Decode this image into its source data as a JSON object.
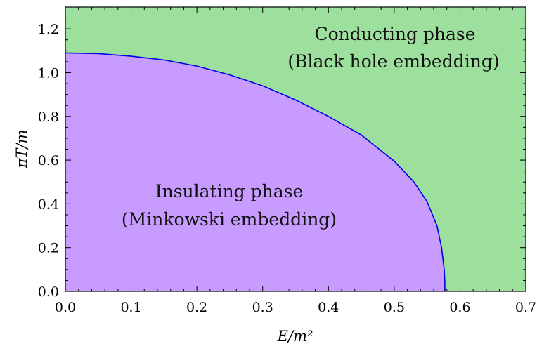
{
  "chart_data": {
    "type": "area",
    "title": "",
    "xlabel": "E/m²",
    "ylabel": "πT/m",
    "xlim": [
      0.0,
      0.7
    ],
    "ylim": [
      0.0,
      1.3
    ],
    "x_ticks": [
      "0.0",
      "0.1",
      "0.2",
      "0.3",
      "0.4",
      "0.5",
      "0.6",
      "0.7"
    ],
    "y_ticks": [
      "0.0",
      "0.2",
      "0.4",
      "0.6",
      "0.8",
      "1.0",
      "1.2"
    ],
    "grid": false,
    "colors": {
      "conducting_fill": "#9ddf9d",
      "insulating_fill": "#c89cff",
      "boundary_line": "#0000e6"
    },
    "series": [
      {
        "x": [
          0.0,
          0.05,
          0.1,
          0.15,
          0.2,
          0.25,
          0.3,
          0.35,
          0.4,
          0.45,
          0.5,
          0.53,
          0.55,
          0.565,
          0.572,
          0.576,
          0.577,
          0.577
        ],
        "values": [
          1.09,
          1.087,
          1.075,
          1.058,
          1.03,
          0.99,
          0.94,
          0.875,
          0.8,
          0.715,
          0.595,
          0.5,
          0.41,
          0.3,
          0.2,
          0.1,
          0.04,
          0.0
        ]
      }
    ],
    "regions": [
      {
        "label_line1": "Conducting phase",
        "label_line2": "(Black hole embedding)"
      },
      {
        "label_line1": "Insulating phase",
        "label_line2": "(Minkowski embedding)"
      }
    ]
  }
}
